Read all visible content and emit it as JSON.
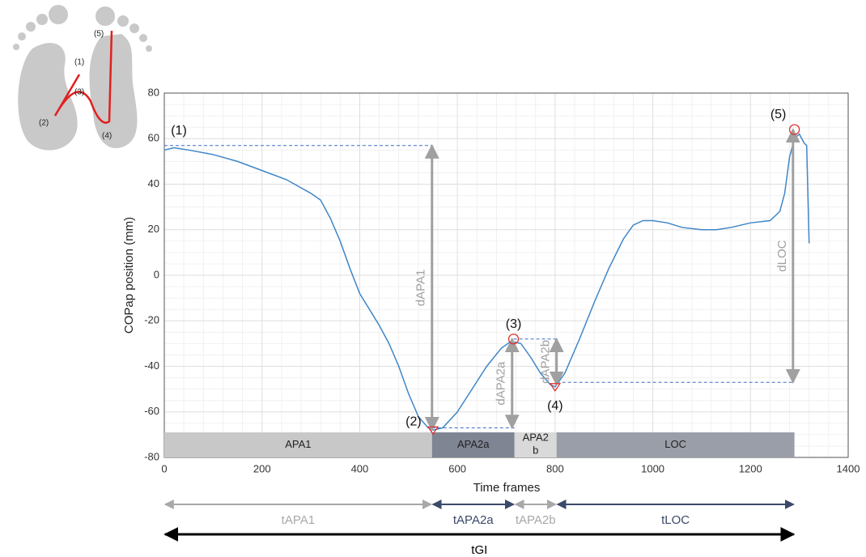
{
  "inset": {
    "labels": [
      "(1)",
      "(2)",
      "(3)",
      "(4)",
      "(5)"
    ]
  },
  "chart_data": {
    "type": "line",
    "x_label": "Time frames",
    "y_label": "COPap position (mm)",
    "xlim": [
      0,
      1400
    ],
    "ylim": [
      -80,
      80
    ],
    "xticks": [
      0,
      200,
      400,
      600,
      800,
      1000,
      1200,
      1400
    ],
    "yticks": [
      -80,
      -60,
      -40,
      -20,
      0,
      20,
      40,
      60,
      80
    ],
    "grid": true,
    "minor_grid": true,
    "x": [
      0,
      20,
      50,
      100,
      150,
      200,
      250,
      300,
      320,
      340,
      360,
      380,
      400,
      420,
      440,
      460,
      480,
      500,
      520,
      540,
      550,
      570,
      600,
      630,
      660,
      690,
      710,
      730,
      750,
      770,
      790,
      800,
      820,
      850,
      880,
      910,
      940,
      960,
      980,
      1000,
      1030,
      1060,
      1100,
      1130,
      1160,
      1200,
      1240,
      1260,
      1270,
      1280,
      1290,
      1300,
      1310,
      1315,
      1320
    ],
    "series": [
      {
        "color": "#3f86c8",
        "values": [
          55,
          56,
          55,
          53,
          50,
          46,
          42,
          36,
          33,
          25,
          15,
          3,
          -8,
          -15,
          -22,
          -30,
          -40,
          -52,
          -62,
          -67,
          -68,
          -67,
          -60,
          -50,
          -40,
          -32,
          -29,
          -30,
          -36,
          -43,
          -48,
          -49,
          -43,
          -28,
          -12,
          3,
          16,
          22,
          24,
          24,
          23,
          21,
          20,
          20,
          21,
          23,
          24,
          28,
          36,
          52,
          60,
          62,
          58,
          57,
          14
        ]
      }
    ],
    "annotations": [
      {
        "label": "(1)",
        "x": 0,
        "y": 57,
        "marker": "none"
      },
      {
        "label": "(2)",
        "x": 550,
        "y": -68,
        "marker": "triangle"
      },
      {
        "label": "(3)",
        "x": 715,
        "y": -28,
        "marker": "circle"
      },
      {
        "label": "(4)",
        "x": 800,
        "y": -49,
        "marker": "triangle"
      },
      {
        "label": "(5)",
        "x": 1290,
        "y": 64,
        "marker": "circle"
      }
    ],
    "guides": [
      {
        "y": 57,
        "from": 0,
        "to": 548
      },
      {
        "y": -67,
        "from": 548,
        "to": 717
      },
      {
        "y": -28,
        "from": 715,
        "to": 803
      },
      {
        "y": -47,
        "from": 803,
        "to": 1287
      }
    ],
    "distances": [
      {
        "label": "dAPA1",
        "x": 548,
        "from": 57,
        "to": -68
      },
      {
        "label": "dAPA2a",
        "x": 712,
        "from": -67,
        "to": -28
      },
      {
        "label": "dAPA2b",
        "x": 803,
        "from": -28,
        "to": -48
      },
      {
        "label": "dLOC",
        "x": 1287,
        "from": 64,
        "to": -47
      }
    ],
    "phases": [
      {
        "label": "APA1",
        "start": 0,
        "end": 548,
        "color": "#c8c8c8"
      },
      {
        "label": "APA2a",
        "start": 548,
        "end": 717,
        "color": "#7f8593"
      },
      {
        "label": "APA2\nb",
        "start": 717,
        "end": 803,
        "color": "#d9d9d9"
      },
      {
        "label": "LOC",
        "start": 803,
        "end": 1290,
        "color": "#9a9ea8"
      }
    ],
    "durations": [
      {
        "label": "tAPA1",
        "start": 0,
        "end": 548,
        "color": "#a8a8a8",
        "row": 0
      },
      {
        "label": "tAPA2a",
        "start": 548,
        "end": 717,
        "color": "#3b4a6b",
        "row": 0
      },
      {
        "label": "tAPA2b",
        "start": 717,
        "end": 803,
        "color": "#a8a8a8",
        "row": 0
      },
      {
        "label": "tLOC",
        "start": 803,
        "end": 1290,
        "color": "#3b4a6b",
        "row": 0
      },
      {
        "label": "tGI",
        "start": 0,
        "end": 1290,
        "color": "#000000",
        "row": 1
      }
    ]
  }
}
